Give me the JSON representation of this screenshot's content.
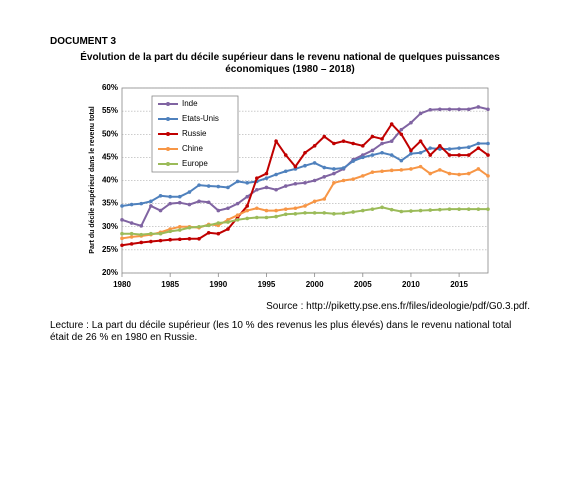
{
  "document_label": "DOCUMENT 3",
  "chart_data": {
    "type": "line",
    "title": "Évolution de la part du décile supérieur dans le revenu national de quelques puissances économiques (1980 – 2018)",
    "y_label": "Part du décile supérieur dans le revenu total",
    "x": [
      1980,
      1981,
      1982,
      1983,
      1984,
      1985,
      1986,
      1987,
      1988,
      1989,
      1990,
      1991,
      1992,
      1993,
      1994,
      1995,
      1996,
      1997,
      1998,
      1999,
      2000,
      2001,
      2002,
      2003,
      2004,
      2005,
      2006,
      2007,
      2008,
      2009,
      2010,
      2011,
      2012,
      2013,
      2014,
      2015,
      2016,
      2017,
      2018
    ],
    "xlim": [
      1980,
      2018
    ],
    "xticks": [
      1980,
      1985,
      1990,
      1995,
      2000,
      2005,
      2010,
      2015
    ],
    "ylim": [
      20,
      60
    ],
    "yticks": [
      {
        "value": 20,
        "label": "20%"
      },
      {
        "value": 25,
        "label": "25%"
      },
      {
        "value": 30,
        "label": "30%"
      },
      {
        "value": 35,
        "label": "35%"
      },
      {
        "value": 40,
        "label": "40%"
      },
      {
        "value": 45,
        "label": "45%"
      },
      {
        "value": 50,
        "label": "50%"
      },
      {
        "value": 55,
        "label": "55%"
      },
      {
        "value": 60,
        "label": "60%"
      }
    ],
    "grid": true,
    "legend": "upper left",
    "series": [
      {
        "name": "Inde",
        "color": "#8064a2",
        "values": [
          31.5,
          30.8,
          30.2,
          34.5,
          33.5,
          35,
          35.2,
          34.8,
          35.5,
          35.3,
          33.5,
          34,
          35,
          36.5,
          38,
          38.5,
          38,
          38.8,
          39.3,
          39.5,
          40,
          40.8,
          41.5,
          42.5,
          44.5,
          45.5,
          46.5,
          48,
          48.5,
          51,
          52.5,
          54.5,
          55.3,
          55.4,
          55.4,
          55.4,
          55.4,
          55.9,
          55.4
        ]
      },
      {
        "name": "Etats-Unis",
        "color": "#4f81bd",
        "values": [
          34.5,
          34.8,
          35,
          35.5,
          36.7,
          36.5,
          36.5,
          37.5,
          39,
          38.8,
          38.7,
          38.5,
          39.8,
          39.5,
          39.8,
          40.5,
          41.3,
          42,
          42.5,
          43.2,
          43.8,
          42.8,
          42.5,
          42.7,
          44.2,
          45,
          45.5,
          46,
          45.5,
          44.3,
          45.8,
          46,
          47,
          46.8,
          46.8,
          47,
          47.2,
          48,
          48
        ]
      },
      {
        "name": "Russie",
        "color": "#c00000",
        "values": [
          26,
          26.3,
          26.6,
          26.8,
          27,
          27.2,
          27.3,
          27.4,
          27.4,
          28.7,
          28.5,
          29.5,
          32,
          34.5,
          40.5,
          41.5,
          48.5,
          45.5,
          43,
          46,
          47.5,
          49.5,
          48,
          48.5,
          48,
          47.5,
          49.5,
          49,
          52.2,
          50,
          46.5,
          48.5,
          45.5,
          47.5,
          45.5,
          45.5,
          45.5,
          47,
          45.5
        ]
      },
      {
        "name": "Chine",
        "color": "#f79646",
        "values": [
          27.5,
          27.8,
          28,
          28.3,
          28.8,
          29.5,
          30,
          30,
          29.8,
          30.5,
          30.3,
          31.5,
          32.5,
          33.5,
          34,
          33.5,
          33.5,
          33.8,
          34,
          34.5,
          35.5,
          36,
          39.5,
          40,
          40.3,
          41,
          41.8,
          42,
          42.2,
          42.3,
          42.5,
          43,
          41.5,
          42.3,
          41.5,
          41.3,
          41.5,
          42.5,
          41
        ]
      },
      {
        "name": "Europe",
        "color": "#9bbb59",
        "values": [
          28.5,
          28.5,
          28.3,
          28.5,
          28.5,
          29,
          29.3,
          29.8,
          30,
          30.3,
          30.8,
          31,
          31.5,
          31.8,
          32,
          32,
          32.2,
          32.7,
          32.8,
          33,
          33,
          33,
          32.8,
          32.9,
          33.2,
          33.5,
          33.8,
          34.2,
          33.7,
          33.3,
          33.4,
          33.5,
          33.6,
          33.7,
          33.8,
          33.8,
          33.8,
          33.8,
          33.8
        ]
      }
    ]
  },
  "source": "Source : http://piketty.pse.ens.fr/files/ideologie/pdf/G0.3.pdf.",
  "caption": "Lecture : La part du décile supérieur (les 10 % des revenus les plus élevés) dans le revenu national total était de 26 % en 1980 en Russie."
}
